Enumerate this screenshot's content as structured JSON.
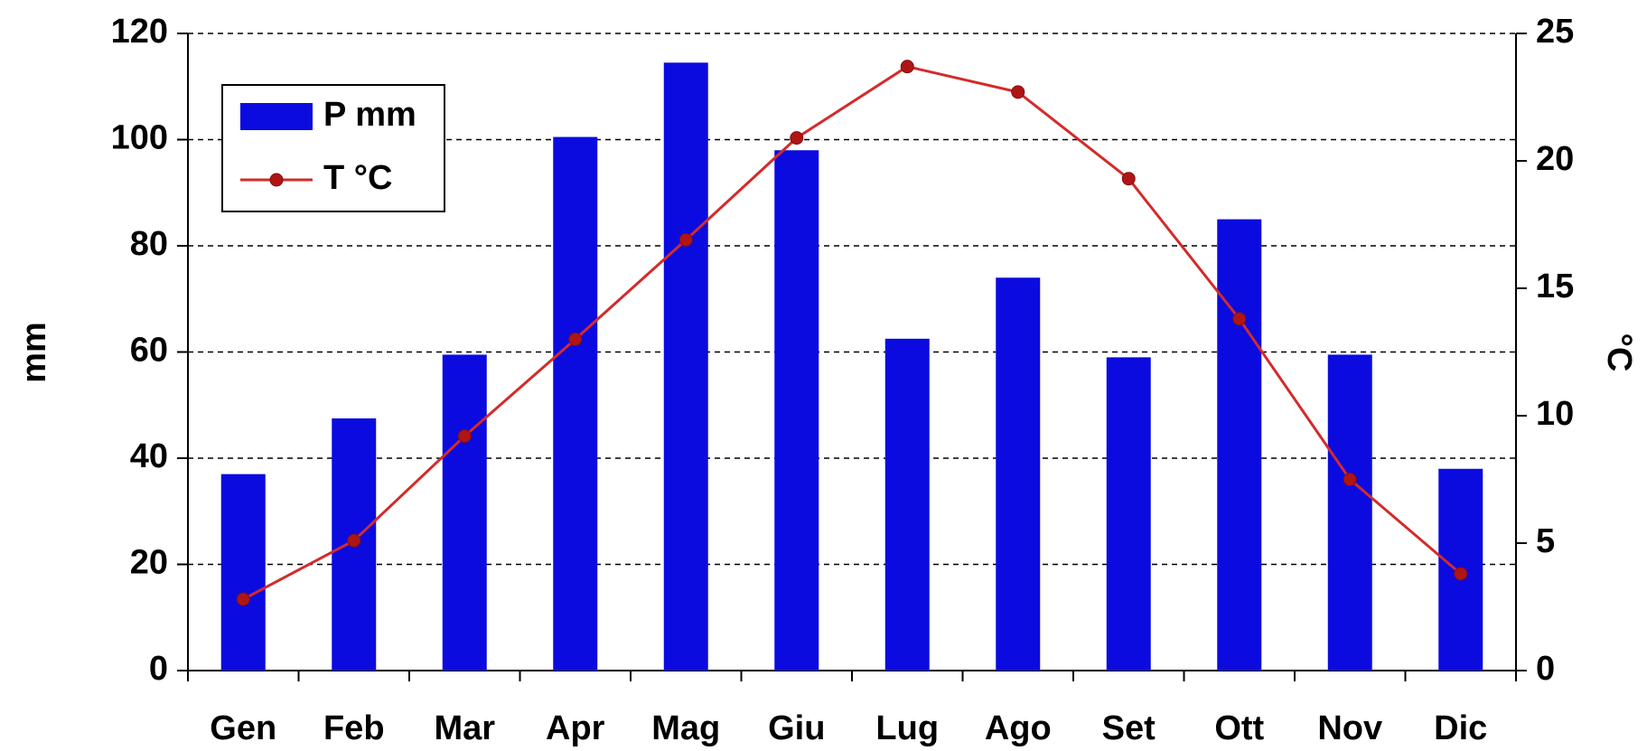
{
  "chart_data": {
    "type": "bar",
    "categories": [
      "Gen",
      "Feb",
      "Mar",
      "Apr",
      "Mag",
      "Giu",
      "Lug",
      "Ago",
      "Set",
      "Ott",
      "Nov",
      "Dic"
    ],
    "series": [
      {
        "name": "P mm",
        "color": "#0b0be0",
        "values": [
          37,
          47.5,
          59.5,
          100.5,
          114.5,
          98,
          62.5,
          74,
          59,
          85,
          59.5,
          38
        ]
      },
      {
        "name": "T °C",
        "color": "#d42a2a",
        "type": "line",
        "axis": "y2",
        "values": [
          2.8,
          5.1,
          9.2,
          13.0,
          16.9,
          20.9,
          23.7,
          22.7,
          19.3,
          13.8,
          7.5,
          3.8
        ]
      }
    ],
    "ylabel": "mm",
    "y2label": "°C",
    "ylim": [
      0,
      120
    ],
    "yticks": [
      0,
      20,
      40,
      60,
      80,
      100,
      120
    ],
    "y2lim": [
      0,
      25
    ],
    "y2ticks": [
      0,
      5,
      10,
      15,
      20,
      25
    ],
    "grid": true,
    "legend": "upper left"
  }
}
